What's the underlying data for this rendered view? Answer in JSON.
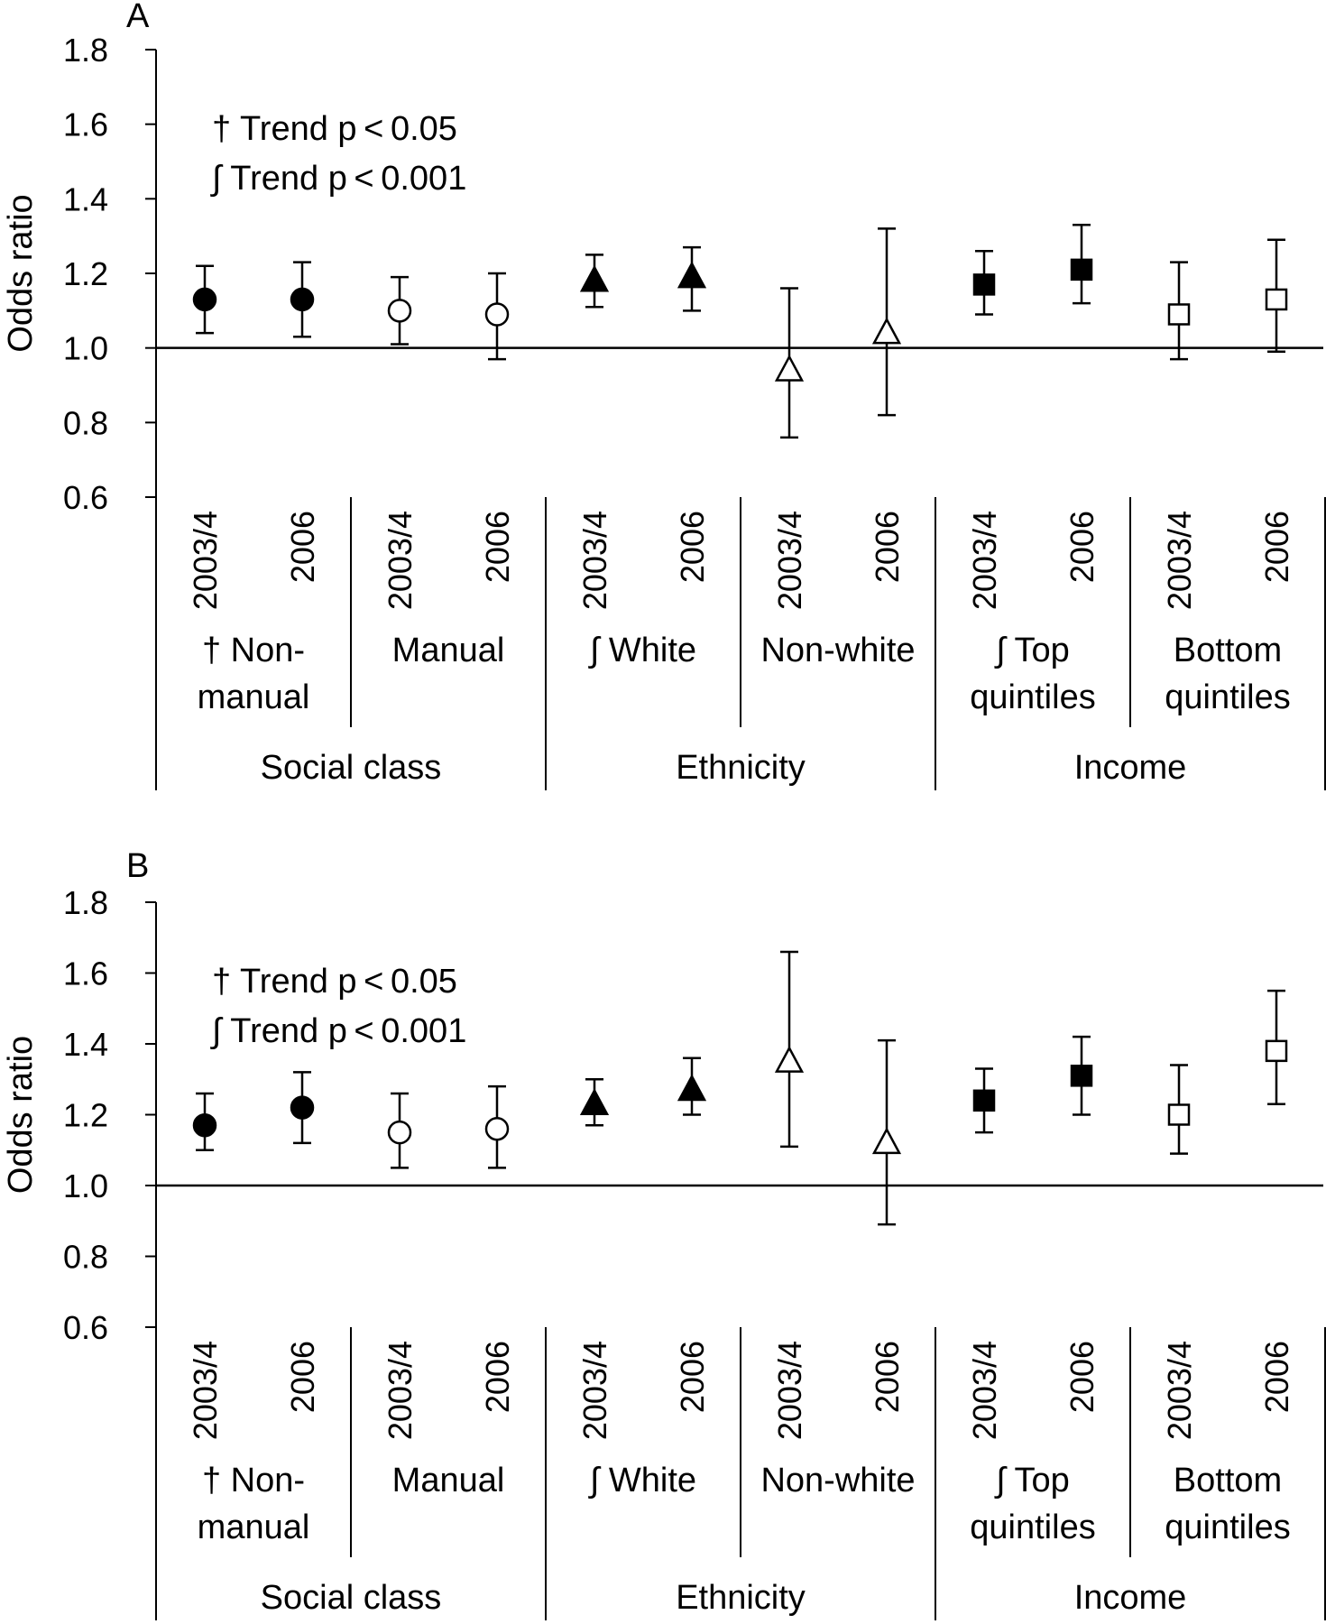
{
  "chart_data": [
    {
      "panel_label": "A",
      "type": "scatter",
      "ylabel": "Odds ratio",
      "ylim": [
        0.6,
        1.8
      ],
      "yticks": [
        "0.6",
        "0.8",
        "1.0",
        "1.2",
        "1.4",
        "1.6",
        "1.8"
      ],
      "reference_line": 1.0,
      "annotations": [
        "† Trend p < 0.05",
        "∫ Trend p < 0.001"
      ],
      "categories": [
        "2003/4",
        "2006",
        "2003/4",
        "2006",
        "2003/4",
        "2006",
        "2003/4",
        "2006",
        "2003/4",
        "2006",
        "2003/4",
        "2006"
      ],
      "groups": [
        {
          "label": "† Non-manual",
          "lines": [
            "† Non-",
            "manual"
          ],
          "marker": "circle-filled",
          "points": [
            {
              "year": "2003/4",
              "or": 1.13,
              "lo": 1.04,
              "hi": 1.22
            },
            {
              "year": "2006",
              "or": 1.13,
              "lo": 1.03,
              "hi": 1.23
            }
          ]
        },
        {
          "label": "Manual",
          "lines": [
            "Manual"
          ],
          "marker": "circle-open",
          "points": [
            {
              "year": "2003/4",
              "or": 1.1,
              "lo": 1.01,
              "hi": 1.19
            },
            {
              "year": "2006",
              "or": 1.09,
              "lo": 0.97,
              "hi": 1.2
            }
          ]
        },
        {
          "label": "∫ White",
          "lines": [
            "∫ White"
          ],
          "marker": "triangle-filled",
          "points": [
            {
              "year": "2003/4",
              "or": 1.18,
              "lo": 1.11,
              "hi": 1.25
            },
            {
              "year": "2006",
              "or": 1.19,
              "lo": 1.1,
              "hi": 1.27
            }
          ]
        },
        {
          "label": "Non-white",
          "lines": [
            "Non-white"
          ],
          "marker": "triangle-open",
          "points": [
            {
              "year": "2003/4",
              "or": 0.94,
              "lo": 0.76,
              "hi": 1.16
            },
            {
              "year": "2006",
              "or": 1.04,
              "lo": 0.82,
              "hi": 1.32
            }
          ]
        },
        {
          "label": "∫ Top quintiles",
          "lines": [
            "∫ Top",
            "quintiles"
          ],
          "marker": "square-filled",
          "points": [
            {
              "year": "2003/4",
              "or": 1.17,
              "lo": 1.09,
              "hi": 1.26
            },
            {
              "year": "2006",
              "or": 1.21,
              "lo": 1.12,
              "hi": 1.33
            }
          ]
        },
        {
          "label": "Bottom quintiles",
          "lines": [
            "Bottom",
            "quintiles"
          ],
          "marker": "square-open",
          "points": [
            {
              "year": "2003/4",
              "or": 1.09,
              "lo": 0.97,
              "hi": 1.23
            },
            {
              "year": "2006",
              "or": 1.13,
              "lo": 0.99,
              "hi": 1.29
            }
          ]
        }
      ],
      "domains": [
        "Social class",
        "Ethnicity",
        "Income"
      ]
    },
    {
      "panel_label": "B",
      "type": "scatter",
      "ylabel": "Odds ratio",
      "ylim": [
        0.6,
        1.8
      ],
      "yticks": [
        "0.6",
        "0.8",
        "1.0",
        "1.2",
        "1.4",
        "1.6",
        "1.8"
      ],
      "reference_line": 1.0,
      "annotations": [
        "† Trend p < 0.05",
        "∫ Trend p < 0.001"
      ],
      "categories": [
        "2003/4",
        "2006",
        "2003/4",
        "2006",
        "2003/4",
        "2006",
        "2003/4",
        "2006",
        "2003/4",
        "2006",
        "2003/4",
        "2006"
      ],
      "groups": [
        {
          "label": "† Non-manual",
          "lines": [
            "† Non-",
            "manual"
          ],
          "marker": "circle-filled",
          "points": [
            {
              "year": "2003/4",
              "or": 1.17,
              "lo": 1.1,
              "hi": 1.26
            },
            {
              "year": "2006",
              "or": 1.22,
              "lo": 1.12,
              "hi": 1.32
            }
          ]
        },
        {
          "label": "Manual",
          "lines": [
            "Manual"
          ],
          "marker": "circle-open",
          "points": [
            {
              "year": "2003/4",
              "or": 1.15,
              "lo": 1.05,
              "hi": 1.26
            },
            {
              "year": "2006",
              "or": 1.16,
              "lo": 1.05,
              "hi": 1.28
            }
          ]
        },
        {
          "label": "∫ White",
          "lines": [
            "∫ White"
          ],
          "marker": "triangle-filled",
          "points": [
            {
              "year": "2003/4",
              "or": 1.23,
              "lo": 1.17,
              "hi": 1.3
            },
            {
              "year": "2006",
              "or": 1.27,
              "lo": 1.2,
              "hi": 1.36
            }
          ]
        },
        {
          "label": "Non-white",
          "lines": [
            "Non-white"
          ],
          "marker": "triangle-open",
          "points": [
            {
              "year": "2003/4",
              "or": 1.35,
              "lo": 1.11,
              "hi": 1.66
            },
            {
              "year": "2006",
              "or": 1.12,
              "lo": 0.89,
              "hi": 1.41
            }
          ]
        },
        {
          "label": "∫ Top quintiles",
          "lines": [
            "∫ Top",
            "quintiles"
          ],
          "marker": "square-filled",
          "points": [
            {
              "year": "2003/4",
              "or": 1.24,
              "lo": 1.15,
              "hi": 1.33
            },
            {
              "year": "2006",
              "or": 1.31,
              "lo": 1.2,
              "hi": 1.42
            }
          ]
        },
        {
          "label": "Bottom quintiles",
          "lines": [
            "Bottom",
            "quintiles"
          ],
          "marker": "square-open",
          "points": [
            {
              "year": "2003/4",
              "or": 1.2,
              "lo": 1.09,
              "hi": 1.34
            },
            {
              "year": "2006",
              "or": 1.38,
              "lo": 1.23,
              "hi": 1.55
            }
          ]
        }
      ],
      "domains": [
        "Social class",
        "Ethnicity",
        "Income"
      ]
    }
  ]
}
